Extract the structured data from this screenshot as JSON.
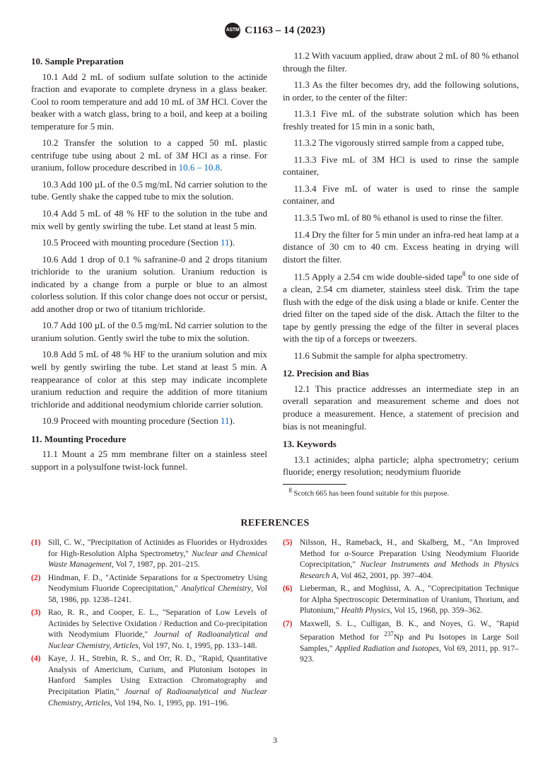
{
  "header": {
    "designation": "C1163 – 14 (2023)",
    "logo_text": "ASTM"
  },
  "s10": {
    "title": "10. Sample Preparation",
    "p1": "10.1 Add 2 mL of sodium sulfate solution to the actinide fraction and evaporate to complete dryness in a glass beaker. Cool to room temperature and add 10 mL of 3",
    "p1m": "M",
    "p1b": " HCl. Cover the beaker with a watch glass, bring to a boil, and keep at a boiling temperature for 5 min.",
    "p2": "10.2 Transfer the solution to a capped 50 mL plastic centrifuge tube using about 2 mL of 3",
    "p2m": "M",
    "p2b": " HCl as a rinse. For uranium, follow procedure described in ",
    "p2c": "10.6 – 10.8",
    "p2d": ".",
    "p3": "10.3 Add 100 µL of the 0.5 mg/mL Nd carrier solution to the tube. Gently shake the capped tube to mix the solution.",
    "p4": "10.4 Add 5 mL of 48 % HF to the solution in the tube and mix well by gently swirling the tube. Let stand at least 5 min.",
    "p5a": "10.5 Proceed with mounting procedure (Section ",
    "p5b": "11",
    "p5c": ").",
    "p6": "10.6 Add 1 drop of 0.1 % safranine-0 and 2 drops titanium trichloride to the uranium solution. Uranium reduction is indicated by a change from a purple or blue to an almost colorless solution. If this color change does not occur or persist, add another drop or two of titanium trichloride.",
    "p7": "10.7 Add 100 µL of the 0.5 mg/mL Nd carrier solution to the uranium solution. Gently swirl the tube to mix the solution.",
    "p8": "10.8 Add 5 mL of 48 % HF to the uranium solution and mix well by gently swirling the tube. Let stand at least 5 min. A reappearance of color at this step may indicate incomplete uranium reduction and require the addition of more titanium trichloride and additional neodymium chloride carrier solution.",
    "p9a": "10.9 Proceed with mounting procedure (Section ",
    "p9b": "11",
    "p9c": ")."
  },
  "s11": {
    "title": "11. Mounting Procedure",
    "p1": "11.1 Mount a 25 mm membrane filter on a stainless steel support in a polysulfone twist-lock funnel.",
    "p2": "11.2 With vacuum applied, draw about 2 mL of 80 % ethanol through the filter.",
    "p3": "11.3 As the filter becomes dry, add the following solutions, in order, to the center of the filter:",
    "p31": "11.3.1 Five mL of the substrate solution which has been freshly treated for 15 min in a sonic bath,",
    "p32": "11.3.2 The vigorously stirred sample from a capped tube,",
    "p33": "11.3.3 Five mL of 3M HCl is used to rinse the sample container,",
    "p34": "11.3.4 Five mL of water is used to rinse the sample container, and",
    "p35": "11.3.5 Two mL of 80 % ethanol is used to rinse the filter.",
    "p4": "11.4 Dry the filter for 5 min under an infra-red heat lamp at a distance of 30 cm to 40 cm. Excess heating in drying will distort the filter.",
    "p5a": "11.5 Apply a 2.54 cm wide double-sided tape",
    "p5sup": "8",
    "p5b": " to one side of a clean, 2.54 cm diameter, stainless steel disk. Trim the tape flush with the edge of the disk using a blade or knife. Center the dried filter on the taped side of the disk. Attach the filter to the tape by gently pressing the edge of the filter in several places with the tip of a forceps or tweezers.",
    "p6": "11.6 Submit the sample for alpha spectrometry."
  },
  "s12": {
    "title": "12. Precision and Bias",
    "p1": "12.1 This practice addresses an intermediate step in an overall separation and measurement scheme and does not produce a measurement. Hence, a statement of precision and bias is not meaningful."
  },
  "s13": {
    "title": "13. Keywords",
    "p1": "13.1 actinides; alpha particle; alpha spectrometry; cerium fluoride; energy resolution; neodymium fluoride"
  },
  "footnote": {
    "sup": "8",
    "text": " Scotch 665 has been found suitable for this purpose."
  },
  "refs_title": "REFERENCES",
  "refs": [
    {
      "num": "(1)",
      "t1": "Sill, C. W., \"Precipitation of Actinides as Fluorides or Hydroxides for High-Resolution Alpha Spectrometry,\" ",
      "j": "Nuclear and Chemical Waste Management",
      "t2": ", Vol 7, 1987, pp. 201–215."
    },
    {
      "num": "(2)",
      "t1": "Hindman, F. D., \"Actinide Separations for α Spectrometry Using Neodymium Fluoride Coprecipitation,\" ",
      "j": "Analytical Chemistry",
      "t2": ", Vol 58, 1986, pp. 1238–1241."
    },
    {
      "num": "(3)",
      "t1": "Rao, R. R., and Cooper, E. L., \"Separation of Low Levels of Actinides by Selective Oxidation / Reduction and Co-precipitation with Neodymium Fluoride,\" ",
      "j": "Journal of Radioanalytical and Nuclear Chemistry, Articles",
      "t2": ", Vol 197, No. 1, 1995, pp. 133–148."
    },
    {
      "num": "(4)",
      "t1": "Kaye, J. H., Strebin, R. S., and Orr, R. D., \"Rapid, Quantitative Analysis of Americium, Curium, and Plutonium Isotopes in Hanford Samples Using Extraction Chromatography and Precipitation Platin,\" ",
      "j": "Journal of Radioanalytical and Nuclear Chemistry, Articles",
      "t2": ", Vol 194, No. 1, 1995, pp. 191–196."
    },
    {
      "num": "(5)",
      "t1": "Nilsson, H., Rameback, H., and Skalberg, M., \"An Improved Method for α-Source Preparation Using Neodymium Fluoride Coprecipitation,\" ",
      "j": "Nuclear Instruments and Methods in Physics Research A",
      "t2": ", Vol 462, 2001, pp. 397–404."
    },
    {
      "num": "(6)",
      "t1": "Lieberman, R., and Moghissi, A. A., \"Coprecipitation Technique for Alpha Spectroscopic Determination of Uranium, Thorium, and Plutonium,\" ",
      "j": "Health Physics",
      "t2": ", Vol 15, 1968, pp. 359–362."
    },
    {
      "num": "(7)",
      "t1": "Maxwell, S. L., Culligan, B. K., and Noyes, G. W., \"Rapid Separation Method for ",
      "iso": "237",
      "t1b": "Np and Pu Isotopes in Large Soil Samples,\" ",
      "j": "Applied Radiation and Isotopes",
      "t2": ", Vol 69, 2011, pp. 917–923."
    }
  ],
  "pagenum": "3"
}
